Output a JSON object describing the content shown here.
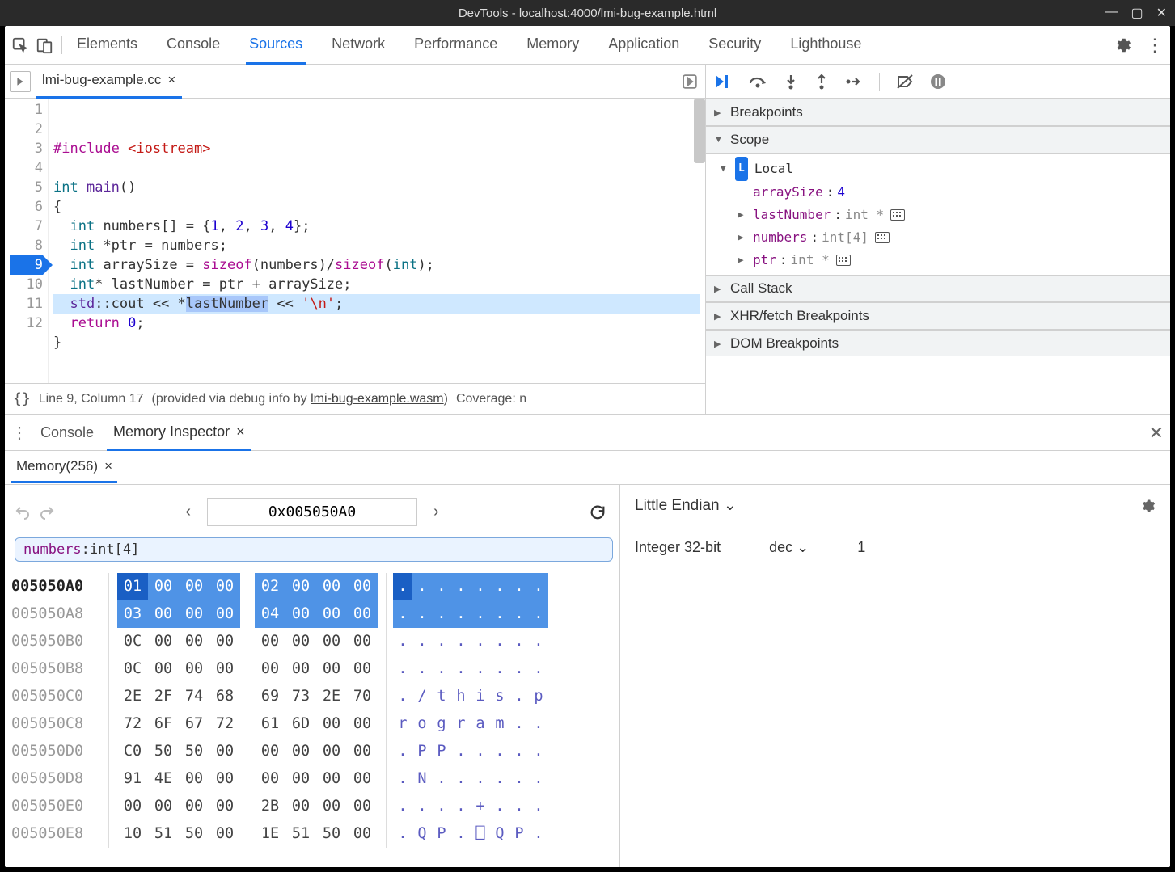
{
  "window": {
    "title": "DevTools - localhost:4000/lmi-bug-example.html"
  },
  "toolbar": {
    "tabs": [
      "Elements",
      "Console",
      "Sources",
      "Network",
      "Performance",
      "Memory",
      "Application",
      "Security",
      "Lighthouse"
    ],
    "active_index": 2
  },
  "file": {
    "name": "lmi-bug-example.cc"
  },
  "code": {
    "lines": [
      {
        "n": 1,
        "html": "<span class='tok-kw'>#include</span> <span class='tok-str'>&lt;iostream&gt;</span>"
      },
      {
        "n": 2,
        "html": ""
      },
      {
        "n": 3,
        "html": "<span class='tok-type'>int</span> <span class='tok-fn'>main</span>()"
      },
      {
        "n": 4,
        "html": "{"
      },
      {
        "n": 5,
        "html": "  <span class='tok-type'>int</span> numbers[] = {<span class='tok-num'>1</span>, <span class='tok-num'>2</span>, <span class='tok-num'>3</span>, <span class='tok-num'>4</span>};"
      },
      {
        "n": 6,
        "html": "  <span class='tok-type'>int</span> *ptr = numbers;"
      },
      {
        "n": 7,
        "html": "  <span class='tok-type'>int</span> arraySize = <span class='tok-kw'>sizeof</span>(numbers)/<span class='tok-kw'>sizeof</span>(<span class='tok-type'>int</span>);"
      },
      {
        "n": 8,
        "html": "  <span class='tok-type'>int</span>* lastNumber = ptr + arraySize;"
      },
      {
        "n": 9,
        "html": "  <span class='tok-fn'>std</span>::cout &lt;&lt; *<span class='tok-sel'>lastNumber</span> &lt;&lt; <span class='tok-str'>'\\n'</span>;",
        "exec": true
      },
      {
        "n": 10,
        "html": "  <span class='tok-kw'>return</span> <span class='tok-num'>0</span>;"
      },
      {
        "n": 11,
        "html": "}"
      },
      {
        "n": 12,
        "html": ""
      }
    ]
  },
  "status": {
    "pos": "Line 9, Column 17",
    "providedPrefix": "(provided via debug info by ",
    "wasm": "lmi-bug-example.wasm",
    "providedSuffix": ")",
    "coverage": "Coverage: n"
  },
  "debug": {
    "sections": {
      "breakpoints": "Breakpoints",
      "scope": "Scope",
      "callstack": "Call Stack",
      "xhr": "XHR/fetch Breakpoints",
      "dom": "DOM Breakpoints"
    },
    "scope": {
      "local": "Local",
      "vars": [
        {
          "name": "arraySize",
          "sep": ": ",
          "val": "4",
          "valColor": "#1c00cf",
          "expand": false
        },
        {
          "name": "lastNumber",
          "sep": ": ",
          "val": "int *",
          "expand": true,
          "mem": true
        },
        {
          "name": "numbers",
          "sep": ": ",
          "val": "int[4]",
          "expand": true,
          "mem": true
        },
        {
          "name": "ptr",
          "sep": ": ",
          "val": "int *",
          "expand": true,
          "mem": true
        }
      ]
    }
  },
  "drawer": {
    "tabs": {
      "console": "Console",
      "memory_inspector": "Memory Inspector"
    },
    "active": "memory_inspector",
    "memory_tab": "Memory(256)"
  },
  "memory": {
    "address": "0x005050A0",
    "chip": {
      "name": "numbers",
      "sep": ": ",
      "type": "int[4]"
    },
    "rows": [
      {
        "addr": "005050A0",
        "bold": true,
        "bytes": [
          "01",
          "00",
          "00",
          "00",
          "02",
          "00",
          "00",
          "00"
        ],
        "hl": [
          0,
          1,
          2,
          3,
          4,
          5,
          6,
          7
        ],
        "strong": [
          0
        ],
        "ascii": [
          ".",
          ".",
          ".",
          ".",
          ".",
          ".",
          ".",
          "."
        ],
        "ahl": [
          0,
          1,
          2,
          3,
          4,
          5,
          6,
          7
        ],
        "astrong": [
          0
        ]
      },
      {
        "addr": "005050A8",
        "bytes": [
          "03",
          "00",
          "00",
          "00",
          "04",
          "00",
          "00",
          "00"
        ],
        "hl": [
          0,
          1,
          2,
          3,
          4,
          5,
          6,
          7
        ],
        "ascii": [
          ".",
          ".",
          ".",
          ".",
          ".",
          ".",
          ".",
          "."
        ],
        "ahl": [
          0,
          1,
          2,
          3,
          4,
          5,
          6,
          7
        ]
      },
      {
        "addr": "005050B0",
        "bytes": [
          "0C",
          "00",
          "00",
          "00",
          "00",
          "00",
          "00",
          "00"
        ],
        "ascii": [
          ".",
          ".",
          ".",
          ".",
          ".",
          ".",
          ".",
          "."
        ]
      },
      {
        "addr": "005050B8",
        "bytes": [
          "0C",
          "00",
          "00",
          "00",
          "00",
          "00",
          "00",
          "00"
        ],
        "ascii": [
          ".",
          ".",
          ".",
          ".",
          ".",
          ".",
          ".",
          "."
        ]
      },
      {
        "addr": "005050C0",
        "bytes": [
          "2E",
          "2F",
          "74",
          "68",
          "69",
          "73",
          "2E",
          "70"
        ],
        "ascii": [
          ".",
          "/",
          "t",
          "h",
          "i",
          "s",
          ".",
          "p"
        ]
      },
      {
        "addr": "005050C8",
        "bytes": [
          "72",
          "6F",
          "67",
          "72",
          "61",
          "6D",
          "00",
          "00"
        ],
        "ascii": [
          "r",
          "o",
          "g",
          "r",
          "a",
          "m",
          ".",
          "."
        ]
      },
      {
        "addr": "005050D0",
        "bytes": [
          "C0",
          "50",
          "50",
          "00",
          "00",
          "00",
          "00",
          "00"
        ],
        "ascii": [
          ".",
          "P",
          "P",
          ".",
          ".",
          ".",
          ".",
          "."
        ]
      },
      {
        "addr": "005050D8",
        "bytes": [
          "91",
          "4E",
          "00",
          "00",
          "00",
          "00",
          "00",
          "00"
        ],
        "ascii": [
          ".",
          "N",
          ".",
          ".",
          ".",
          ".",
          ".",
          "."
        ]
      },
      {
        "addr": "005050E0",
        "bytes": [
          "00",
          "00",
          "00",
          "00",
          "2B",
          "00",
          "00",
          "00"
        ],
        "ascii": [
          ".",
          ".",
          ".",
          ".",
          "+",
          ".",
          ".",
          "."
        ]
      },
      {
        "addr": "005050E8",
        "bytes": [
          "10",
          "51",
          "50",
          "00",
          "1E",
          "51",
          "50",
          "00"
        ],
        "ascii": [
          ".",
          "Q",
          "P",
          ".",
          "⎕",
          "Q",
          "P",
          "."
        ]
      }
    ]
  },
  "interpreter": {
    "endian": "Little Endian",
    "type": "Integer 32-bit",
    "repr": "dec",
    "value": "1"
  },
  "colors": {
    "accent": "#1a73e8",
    "highlight": "#4f93e6"
  }
}
